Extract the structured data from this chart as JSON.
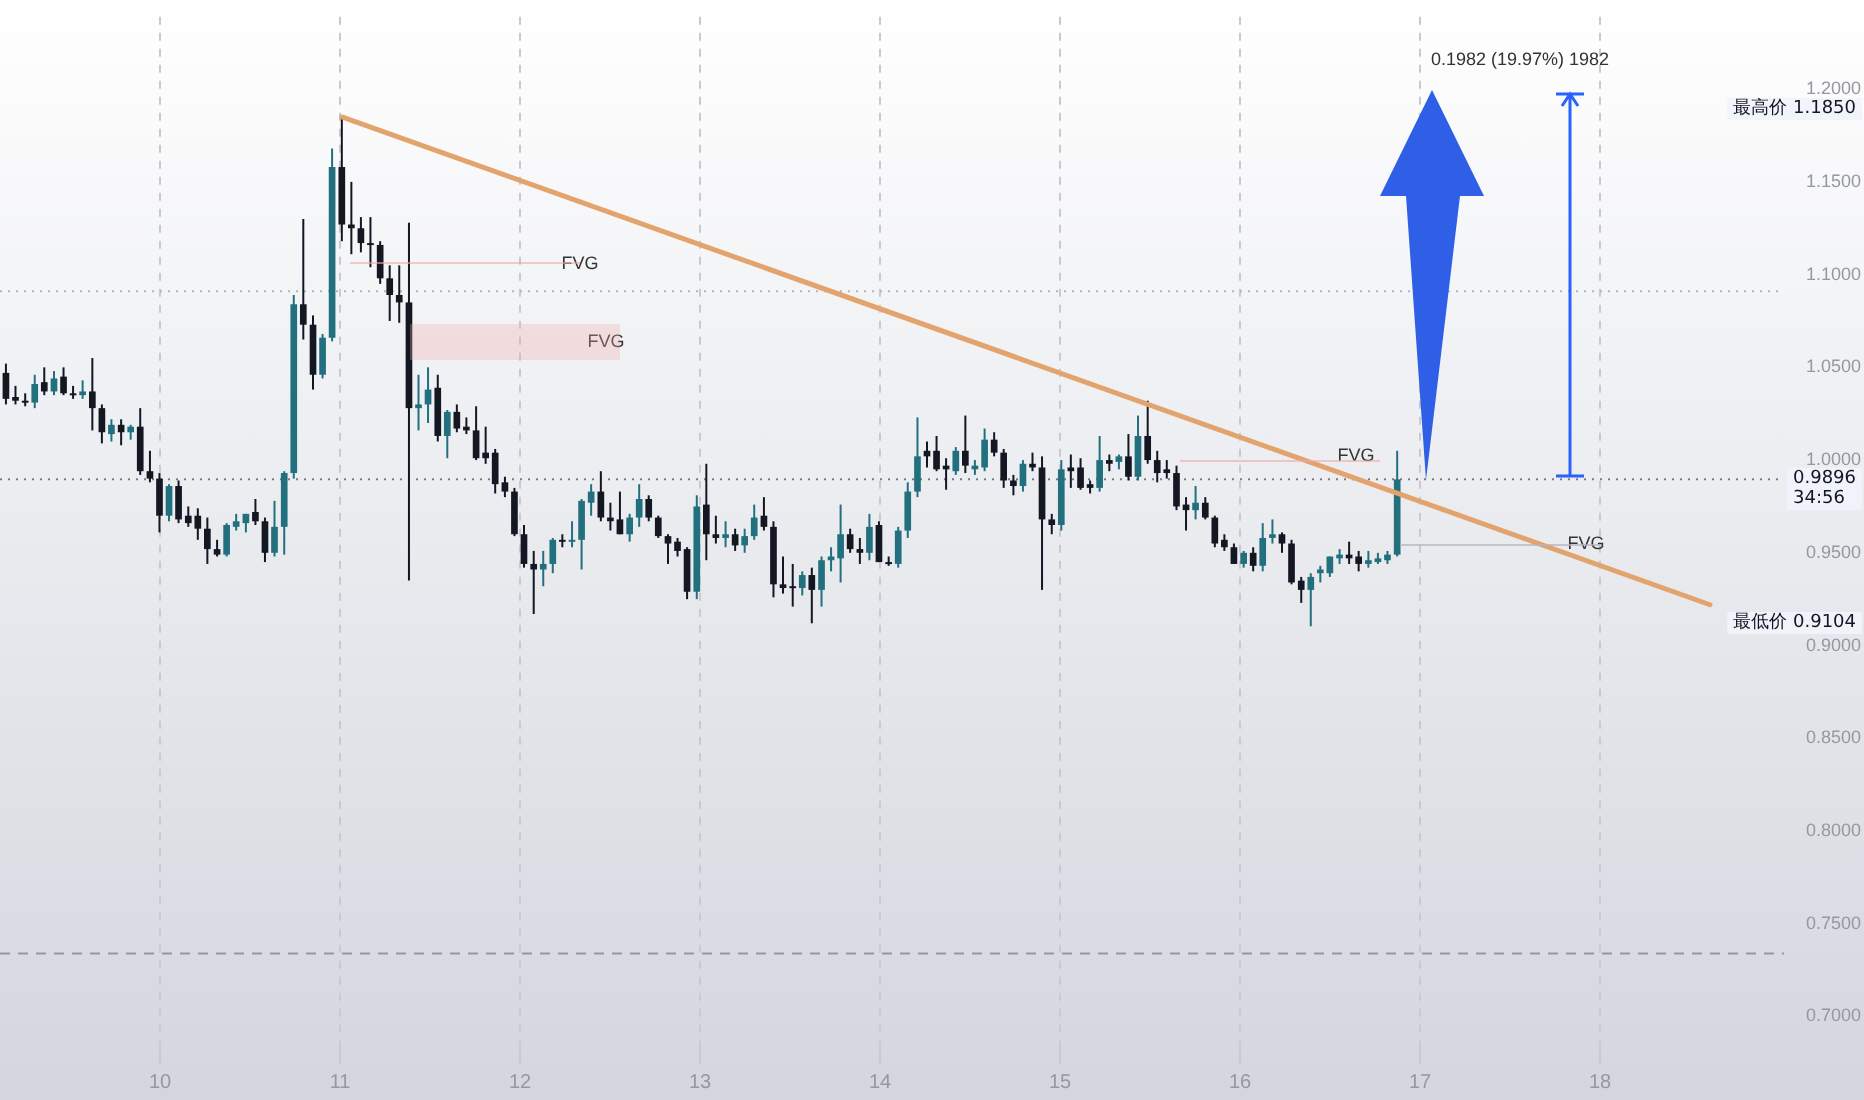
{
  "chart_data": {
    "type": "candlestick",
    "xlim": [
      9.111,
      19.022
    ],
    "xticks": [
      10,
      11,
      12,
      13,
      14,
      15,
      16,
      17,
      18
    ],
    "ylim": [
      0.683,
      1.239
    ],
    "yticks": [
      {
        "value": 0.7,
        "label": "0.7000"
      },
      {
        "value": 0.75,
        "label": "0.7500"
      },
      {
        "value": 0.8,
        "label": "0.8000"
      },
      {
        "value": 0.85,
        "label": "0.8500"
      },
      {
        "value": 0.9,
        "label": "0.9000"
      },
      {
        "value": 0.95,
        "label": "0.9500"
      },
      {
        "value": 1.0,
        "label": "1.0000"
      },
      {
        "value": 1.05,
        "label": "1.0500"
      },
      {
        "value": 1.1,
        "label": "1.1000"
      },
      {
        "value": 1.15,
        "label": "1.1500"
      },
      {
        "value": 1.2,
        "label": "1.2000"
      }
    ],
    "grid": "x",
    "legend": false,
    "series": [
      {
        "x": [
          9.144,
          9.197,
          9.251,
          9.304,
          9.357,
          9.411,
          9.464,
          9.517,
          9.57,
          9.624,
          9.677,
          9.73,
          9.784,
          9.837,
          9.89,
          9.944,
          9.997,
          10.05,
          10.103,
          10.157,
          10.21,
          10.263,
          10.317,
          10.37,
          10.423,
          10.477,
          10.53,
          10.583,
          10.636,
          10.69,
          10.743,
          10.796,
          10.85,
          10.903,
          10.956,
          11.01,
          11.063,
          11.116,
          11.169,
          11.223,
          11.276,
          11.329,
          11.383,
          11.436,
          11.489,
          11.543,
          11.596,
          11.649,
          11.702,
          11.756,
          11.809,
          11.862,
          11.916,
          11.969,
          12.022,
          12.076,
          12.129,
          12.182,
          12.235,
          12.289,
          12.342,
          12.395,
          12.449,
          12.502,
          12.555,
          12.609,
          12.662,
          12.715,
          12.768,
          12.822,
          12.875,
          12.928,
          12.982,
          13.035,
          13.088,
          13.142,
          13.195,
          13.248,
          13.301,
          13.355,
          13.408,
          13.461,
          13.515,
          13.568,
          13.621,
          13.675,
          13.728,
          13.781,
          13.834,
          13.888,
          13.941,
          13.994,
          14.048,
          14.101,
          14.154,
          14.208,
          14.261,
          14.314,
          14.367,
          14.421,
          14.474,
          14.527,
          14.581,
          14.634,
          14.687,
          14.741,
          14.794,
          14.847,
          14.9,
          14.954,
          15.007,
          15.06,
          15.114,
          15.167,
          15.22,
          15.274,
          15.327,
          15.38,
          15.433,
          15.487,
          15.54,
          15.593,
          15.647,
          15.7,
          15.753,
          15.807,
          15.86,
          15.913,
          15.966,
          16.02,
          16.073,
          16.126,
          16.18,
          16.233,
          16.286,
          16.34,
          16.393,
          16.446,
          16.499,
          16.553,
          16.606,
          16.659,
          16.713,
          16.766,
          16.819,
          16.873
        ],
        "ohlc": [
          [
            1.047,
            1.052,
            1.03,
            1.033
          ],
          [
            1.034,
            1.04,
            1.03,
            1.032
          ],
          [
            1.032,
            1.036,
            1.029,
            1.031
          ],
          [
            1.031,
            1.046,
            1.028,
            1.041
          ],
          [
            1.042,
            1.05,
            1.035,
            1.037
          ],
          [
            1.037,
            1.048,
            1.035,
            1.044
          ],
          [
            1.045,
            1.05,
            1.035,
            1.036
          ],
          [
            1.036,
            1.04,
            1.033,
            1.035
          ],
          [
            1.035,
            1.043,
            1.033,
            1.037
          ],
          [
            1.037,
            1.055,
            1.016,
            1.028
          ],
          [
            1.028,
            1.03,
            1.009,
            1.015
          ],
          [
            1.014,
            1.022,
            1.01,
            1.019
          ],
          [
            1.019,
            1.022,
            1.008,
            1.015
          ],
          [
            1.015,
            1.019,
            1.011,
            1.018
          ],
          [
            1.018,
            1.028,
            0.992,
            0.994
          ],
          [
            0.994,
            1.005,
            0.988,
            0.99
          ],
          [
            0.99,
            0.993,
            0.961,
            0.97
          ],
          [
            0.97,
            0.987,
            0.967,
            0.986
          ],
          [
            0.986,
            0.989,
            0.966,
            0.968
          ],
          [
            0.97,
            0.975,
            0.964,
            0.966
          ],
          [
            0.97,
            0.974,
            0.957,
            0.963
          ],
          [
            0.963,
            0.969,
            0.944,
            0.952
          ],
          [
            0.952,
            0.957,
            0.948,
            0.949
          ],
          [
            0.949,
            0.966,
            0.948,
            0.965
          ],
          [
            0.964,
            0.971,
            0.962,
            0.967
          ],
          [
            0.966,
            0.971,
            0.961,
            0.971
          ],
          [
            0.972,
            0.979,
            0.965,
            0.967
          ],
          [
            0.967,
            0.969,
            0.945,
            0.95
          ],
          [
            0.95,
            0.978,
            0.948,
            0.964
          ],
          [
            0.964,
            0.994,
            0.949,
            0.993
          ],
          [
            0.993,
            1.089,
            0.99,
            1.084
          ],
          [
            1.084,
            1.13,
            1.065,
            1.073
          ],
          [
            1.073,
            1.078,
            1.038,
            1.046
          ],
          [
            1.046,
            1.068,
            1.044,
            1.066
          ],
          [
            1.066,
            1.168,
            1.064,
            1.158
          ],
          [
            1.158,
            1.185,
            1.118,
            1.127
          ],
          [
            1.127,
            1.15,
            1.111,
            1.125
          ],
          [
            1.125,
            1.131,
            1.112,
            1.117
          ],
          [
            1.117,
            1.131,
            1.104,
            1.116
          ],
          [
            1.116,
            1.118,
            1.095,
            1.098
          ],
          [
            1.098,
            1.105,
            1.075,
            1.089
          ],
          [
            1.089,
            1.105,
            1.074,
            1.085
          ],
          [
            1.085,
            1.128,
            0.935,
            1.028
          ],
          [
            1.028,
            1.046,
            1.016,
            1.03
          ],
          [
            1.03,
            1.05,
            1.02,
            1.038
          ],
          [
            1.039,
            1.046,
            1.01,
            1.013
          ],
          [
            1.013,
            1.027,
            1.001,
            1.026
          ],
          [
            1.026,
            1.03,
            1.015,
            1.017
          ],
          [
            1.018,
            1.023,
            1.014,
            1.016
          ],
          [
            1.016,
            1.029,
            1.0,
            1.001
          ],
          [
            1.004,
            1.018,
            0.998,
            1.001
          ],
          [
            1.004,
            1.006,
            0.982,
            0.987
          ],
          [
            0.988,
            0.991,
            0.98,
            0.983
          ],
          [
            0.983,
            0.985,
            0.959,
            0.96
          ],
          [
            0.96,
            0.965,
            0.942,
            0.944
          ],
          [
            0.944,
            0.951,
            0.917,
            0.941
          ],
          [
            0.941,
            0.951,
            0.932,
            0.944
          ],
          [
            0.944,
            0.958,
            0.939,
            0.957
          ],
          [
            0.957,
            0.96,
            0.953,
            0.956
          ],
          [
            0.956,
            0.967,
            0.953,
            0.957
          ],
          [
            0.957,
            0.979,
            0.941,
            0.978
          ],
          [
            0.977,
            0.987,
            0.97,
            0.983
          ],
          [
            0.983,
            0.994,
            0.967,
            0.969
          ],
          [
            0.969,
            0.977,
            0.962,
            0.967
          ],
          [
            0.968,
            0.983,
            0.96,
            0.96
          ],
          [
            0.96,
            0.971,
            0.956,
            0.969
          ],
          [
            0.969,
            0.987,
            0.964,
            0.979
          ],
          [
            0.979,
            0.981,
            0.967,
            0.969
          ],
          [
            0.969,
            0.97,
            0.958,
            0.959
          ],
          [
            0.959,
            0.96,
            0.944,
            0.955
          ],
          [
            0.956,
            0.958,
            0.948,
            0.951
          ],
          [
            0.952,
            0.953,
            0.925,
            0.929
          ],
          [
            0.929,
            0.981,
            0.925,
            0.975
          ],
          [
            0.976,
            0.998,
            0.946,
            0.96
          ],
          [
            0.96,
            0.97,
            0.955,
            0.958
          ],
          [
            0.958,
            0.967,
            0.953,
            0.96
          ],
          [
            0.96,
            0.963,
            0.951,
            0.954
          ],
          [
            0.954,
            0.963,
            0.95,
            0.959
          ],
          [
            0.959,
            0.976,
            0.957,
            0.969
          ],
          [
            0.97,
            0.98,
            0.962,
            0.964
          ],
          [
            0.964,
            0.967,
            0.926,
            0.933
          ],
          [
            0.933,
            0.948,
            0.928,
            0.931
          ],
          [
            0.932,
            0.944,
            0.921,
            0.931
          ],
          [
            0.931,
            0.94,
            0.927,
            0.938
          ],
          [
            0.938,
            0.942,
            0.912,
            0.93
          ],
          [
            0.93,
            0.948,
            0.921,
            0.946
          ],
          [
            0.946,
            0.953,
            0.94,
            0.948
          ],
          [
            0.947,
            0.976,
            0.934,
            0.96
          ],
          [
            0.96,
            0.963,
            0.95,
            0.952
          ],
          [
            0.952,
            0.958,
            0.944,
            0.95
          ],
          [
            0.95,
            0.971,
            0.946,
            0.964
          ],
          [
            0.965,
            0.967,
            0.945,
            0.945
          ],
          [
            0.945,
            0.948,
            0.943,
            0.944
          ],
          [
            0.944,
            0.964,
            0.942,
            0.962
          ],
          [
            0.962,
            0.988,
            0.958,
            0.983
          ],
          [
            0.983,
            1.023,
            0.98,
            1.002
          ],
          [
            1.005,
            1.01,
            0.996,
            1.002
          ],
          [
            1.005,
            1.013,
            0.994,
            0.995
          ],
          [
            0.997,
            1.001,
            0.984,
            0.995
          ],
          [
            0.994,
            1.007,
            0.992,
            1.005
          ],
          [
            1.005,
            1.024,
            0.993,
            0.997
          ],
          [
            0.995,
            1.0,
            0.992,
            0.997
          ],
          [
            0.996,
            1.017,
            0.994,
            1.011
          ],
          [
            1.011,
            1.015,
            1.002,
            1.004
          ],
          [
            1.004,
            1.006,
            0.985,
            0.989
          ],
          [
            0.989,
            0.992,
            0.981,
            0.986
          ],
          [
            0.986,
            1.0,
            0.983,
            0.998
          ],
          [
            0.998,
            1.004,
            0.994,
            0.996
          ],
          [
            0.996,
            1.002,
            0.93,
            0.968
          ],
          [
            0.968,
            0.971,
            0.96,
            0.965
          ],
          [
            0.965,
            1.0,
            0.962,
            0.995
          ],
          [
            0.996,
            1.003,
            0.985,
            0.994
          ],
          [
            0.996,
            1.001,
            0.984,
            0.985
          ],
          [
            0.987,
            0.989,
            0.982,
            0.985
          ],
          [
            0.985,
            1.013,
            0.983,
            1.0
          ],
          [
            1.0,
            1.003,
            0.994,
            0.998
          ],
          [
            0.999,
            1.003,
            0.995,
            1.002
          ],
          [
            1.002,
            1.014,
            0.989,
            0.991
          ],
          [
            0.991,
            1.024,
            0.989,
            1.013
          ],
          [
            1.013,
            1.032,
            0.998,
            1.0
          ],
          [
            1.0,
            1.005,
            0.988,
            0.993
          ],
          [
            0.995,
            1.0,
            0.99,
            0.993
          ],
          [
            0.993,
            0.997,
            0.973,
            0.975
          ],
          [
            0.976,
            0.98,
            0.962,
            0.973
          ],
          [
            0.973,
            0.986,
            0.968,
            0.977
          ],
          [
            0.977,
            0.98,
            0.968,
            0.969
          ],
          [
            0.969,
            0.97,
            0.953,
            0.955
          ],
          [
            0.957,
            0.96,
            0.951,
            0.953
          ],
          [
            0.953,
            0.955,
            0.944,
            0.944
          ],
          [
            0.944,
            0.951,
            0.942,
            0.95
          ],
          [
            0.95,
            0.953,
            0.94,
            0.943
          ],
          [
            0.943,
            0.966,
            0.94,
            0.958
          ],
          [
            0.958,
            0.968,
            0.955,
            0.96
          ],
          [
            0.96,
            0.961,
            0.95,
            0.955
          ],
          [
            0.955,
            0.957,
            0.933,
            0.934
          ],
          [
            0.935,
            0.937,
            0.923,
            0.93
          ],
          [
            0.93,
            0.939,
            0.9104,
            0.937
          ],
          [
            0.939,
            0.943,
            0.934,
            0.941
          ],
          [
            0.939,
            0.948,
            0.937,
            0.948
          ],
          [
            0.947,
            0.952,
            0.944,
            0.949
          ],
          [
            0.949,
            0.956,
            0.944,
            0.947
          ],
          [
            0.948,
            0.951,
            0.94,
            0.944
          ],
          [
            0.944,
            0.951,
            0.942,
            0.946
          ],
          [
            0.945,
            0.95,
            0.944,
            0.947
          ],
          [
            0.946,
            0.951,
            0.944,
            0.949
          ],
          [
            0.949,
            1.005,
            0.948,
            0.9896
          ]
        ],
        "colors": [
          "#131722",
          "#131722",
          "#131722",
          "#22707e",
          "#131722",
          "#22707e",
          "#131722",
          "#131722",
          "#22707e",
          "#131722",
          "#131722",
          "#22707e",
          "#131722",
          "#22707e",
          "#131722",
          "#131722",
          "#131722",
          "#22707e",
          "#131722",
          "#131722",
          "#131722",
          "#131722",
          "#131722",
          "#22707e",
          "#22707e",
          "#22707e",
          "#131722",
          "#131722",
          "#22707e",
          "#22707e",
          "#22707e",
          "#131722",
          "#131722",
          "#22707e",
          "#22707e",
          "#131722",
          "#131722",
          "#131722",
          "#131722",
          "#131722",
          "#131722",
          "#131722",
          "#131722",
          "#22707e",
          "#22707e",
          "#131722",
          "#22707e",
          "#131722",
          "#131722",
          "#131722",
          "#131722",
          "#131722",
          "#131722",
          "#131722",
          "#131722",
          "#131722",
          "#22707e",
          "#22707e",
          "#131722",
          "#22707e",
          "#22707e",
          "#22707e",
          "#131722",
          "#131722",
          "#131722",
          "#22707e",
          "#22707e",
          "#131722",
          "#131722",
          "#131722",
          "#131722",
          "#131722",
          "#22707e",
          "#131722",
          "#131722",
          "#22707e",
          "#131722",
          "#22707e",
          "#22707e",
          "#131722",
          "#131722",
          "#131722",
          "#131722",
          "#22707e",
          "#131722",
          "#22707e",
          "#22707e",
          "#22707e",
          "#131722",
          "#131722",
          "#22707e",
          "#131722",
          "#131722",
          "#22707e",
          "#22707e",
          "#22707e",
          "#131722",
          "#131722",
          "#131722",
          "#22707e",
          "#131722",
          "#22707e",
          "#22707e",
          "#131722",
          "#131722",
          "#131722",
          "#22707e",
          "#131722",
          "#131722",
          "#131722",
          "#22707e",
          "#131722",
          "#131722",
          "#131722",
          "#22707e",
          "#131722",
          "#22707e",
          "#131722",
          "#22707e",
          "#131722",
          "#131722",
          "#131722",
          "#131722",
          "#131722",
          "#22707e",
          "#131722",
          "#131722",
          "#131722",
          "#131722",
          "#22707e",
          "#131722",
          "#22707e",
          "#22707e",
          "#131722",
          "#131722",
          "#131722",
          "#22707e",
          "#22707e",
          "#22707e",
          "#22707e",
          "#131722",
          "#131722",
          "#22707e",
          "#22707e",
          "#22707e",
          "#22707e"
        ]
      },
      {
        "type": "line",
        "x": [
          11.01,
          18.611
        ],
        "values": [
          1.185,
          0.922
        ],
        "color": "#e3a36d"
      }
    ],
    "ref_lines": [
      {
        "axis": "y",
        "value": 0.9896,
        "line_style": "dotted",
        "color": "#787b86"
      },
      {
        "axis": "y",
        "value": 1.091,
        "line_style": "dotted",
        "color": "#b2b5be"
      },
      {
        "axis": "y",
        "value": 0.734,
        "line_style": "dashed",
        "color": "#9598a1"
      }
    ],
    "annotations": [
      "最高价 1.1850",
      "最低价 0.9104",
      "0.9896\n34:56",
      "FVG",
      "FVG",
      "FVG",
      "FVG",
      "0.1982 (19.97%) 1982"
    ]
  }
}
